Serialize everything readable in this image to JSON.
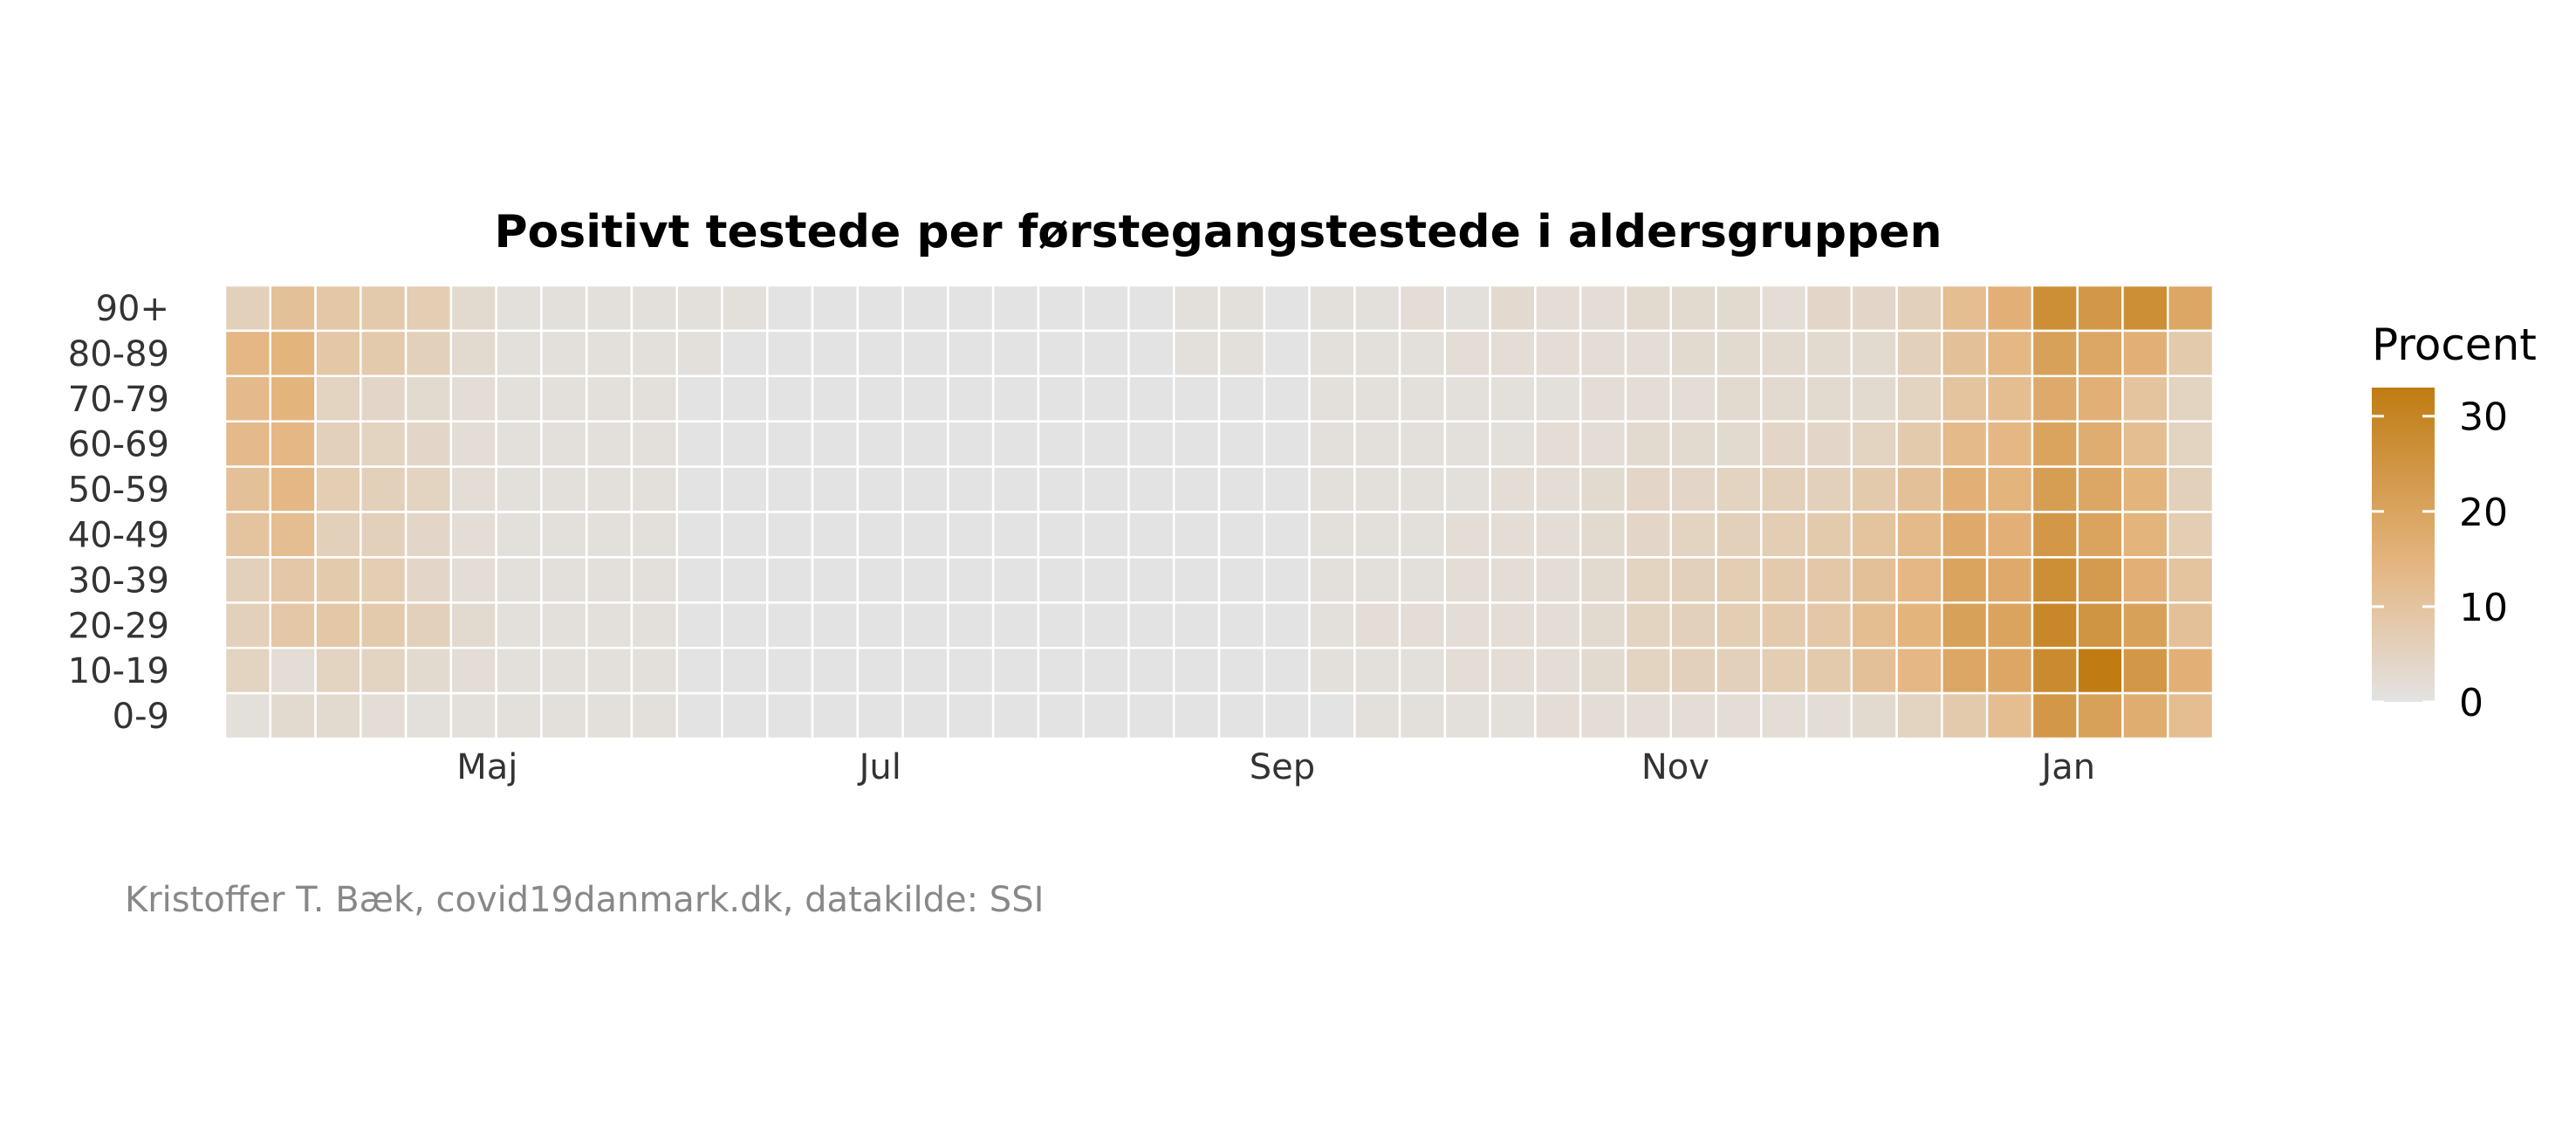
{
  "chart_data": {
    "type": "heatmap",
    "title": "Positivt testede per førstegangstestede i aldersgruppen",
    "xlabel": "",
    "ylabel": "",
    "x_tick_labels": [
      "Maj",
      "Jul",
      "Sep",
      "Nov",
      "Jan"
    ],
    "y_categories": [
      "90+",
      "80-89",
      "70-79",
      "60-69",
      "50-59",
      "40-49",
      "30-39",
      "20-29",
      "10-19",
      "0-9"
    ],
    "legend": {
      "title": "Procent",
      "ticks": [
        0,
        10,
        20,
        30
      ],
      "min": 0,
      "max": 33,
      "position": "right"
    },
    "colors": {
      "low": "#e3e3e3",
      "mid": "#e4b47e",
      "high": "#c07c12"
    },
    "grid": false,
    "caption": "Kristoffer T. Bæk, covid19danmark.dk, datakilde: SSI",
    "n_weeks": 44,
    "values": [
      [
        6,
        11,
        9,
        8,
        7,
        3,
        1,
        1,
        1,
        1,
        1,
        1,
        0,
        0,
        0,
        0,
        0,
        0,
        0,
        0,
        0,
        1,
        1,
        0,
        1,
        1,
        2,
        1,
        3,
        2,
        2,
        3,
        3,
        3,
        2,
        4,
        4,
        6,
        12,
        16,
        27,
        24,
        27,
        19
      ],
      [
        14,
        15,
        9,
        8,
        6,
        3,
        1,
        1,
        1,
        1,
        1,
        0,
        0,
        0,
        0,
        0,
        0,
        0,
        0,
        0,
        0,
        1,
        1,
        0,
        1,
        1,
        1,
        2,
        2,
        2,
        2,
        2,
        3,
        3,
        3,
        3,
        3,
        6,
        11,
        14,
        21,
        19,
        16,
        8
      ],
      [
        13,
        15,
        5,
        4,
        3,
        2,
        1,
        1,
        1,
        1,
        0,
        0,
        0,
        0,
        0,
        0,
        0,
        0,
        0,
        0,
        0,
        0,
        0,
        0,
        1,
        1,
        1,
        1,
        1,
        1,
        2,
        2,
        2,
        3,
        3,
        3,
        3,
        5,
        10,
        12,
        18,
        16,
        10,
        5
      ],
      [
        13,
        14,
        6,
        5,
        4,
        2,
        1,
        1,
        1,
        1,
        0,
        0,
        0,
        0,
        0,
        0,
        0,
        0,
        0,
        0,
        0,
        0,
        0,
        0,
        1,
        1,
        1,
        1,
        1,
        2,
        2,
        3,
        3,
        3,
        4,
        4,
        5,
        8,
        13,
        14,
        20,
        17,
        12,
        5
      ],
      [
        11,
        14,
        7,
        6,
        5,
        2,
        1,
        1,
        1,
        1,
        0,
        0,
        0,
        0,
        0,
        0,
        0,
        0,
        0,
        0,
        0,
        0,
        0,
        0,
        1,
        1,
        1,
        1,
        2,
        2,
        3,
        4,
        4,
        5,
        6,
        6,
        8,
        11,
        16,
        15,
        22,
        19,
        15,
        6
      ],
      [
        10,
        12,
        6,
        6,
        4,
        2,
        1,
        1,
        1,
        1,
        0,
        0,
        0,
        0,
        0,
        0,
        0,
        0,
        0,
        0,
        0,
        0,
        0,
        0,
        1,
        1,
        1,
        2,
        2,
        2,
        3,
        4,
        5,
        6,
        7,
        8,
        10,
        13,
        18,
        16,
        24,
        20,
        15,
        7
      ],
      [
        6,
        9,
        8,
        7,
        4,
        2,
        1,
        1,
        1,
        1,
        0,
        0,
        0,
        0,
        0,
        0,
        0,
        0,
        0,
        0,
        0,
        0,
        0,
        0,
        1,
        1,
        1,
        2,
        2,
        2,
        3,
        5,
        6,
        7,
        8,
        9,
        11,
        14,
        20,
        18,
        27,
        23,
        16,
        10
      ],
      [
        6,
        9,
        9,
        8,
        6,
        3,
        1,
        1,
        1,
        1,
        0,
        0,
        0,
        0,
        0,
        0,
        0,
        0,
        0,
        0,
        0,
        0,
        0,
        0,
        1,
        2,
        2,
        2,
        2,
        2,
        3,
        5,
        6,
        7,
        8,
        9,
        12,
        15,
        21,
        20,
        29,
        25,
        21,
        11
      ],
      [
        5,
        2,
        5,
        5,
        3,
        2,
        1,
        1,
        1,
        1,
        0,
        0,
        0,
        0,
        0,
        0,
        0,
        0,
        0,
        0,
        0,
        0,
        0,
        0,
        1,
        1,
        1,
        2,
        2,
        2,
        3,
        5,
        6,
        6,
        7,
        8,
        11,
        14,
        19,
        19,
        28,
        33,
        24,
        16
      ],
      [
        1,
        3,
        3,
        2,
        1,
        1,
        1,
        1,
        1,
        1,
        0,
        0,
        0,
        0,
        0,
        0,
        0,
        0,
        0,
        0,
        0,
        0,
        0,
        0,
        0,
        1,
        1,
        1,
        1,
        2,
        2,
        2,
        2,
        2,
        2,
        2,
        3,
        5,
        8,
        12,
        24,
        21,
        17,
        12
      ]
    ]
  }
}
